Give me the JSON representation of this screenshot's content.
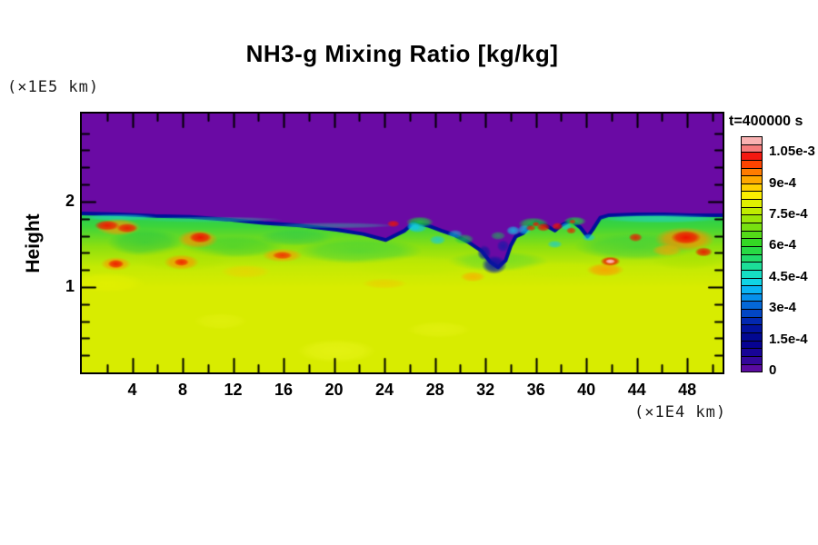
{
  "title": "NH3-g Mixing Ratio [kg/kg]",
  "annotation": {
    "time_label": "t=400000 s"
  },
  "axes": {
    "x": {
      "unit_label": "(×1E4 km)",
      "min": 0,
      "max": 50.8,
      "major_tick_labels": [
        4,
        8,
        12,
        16,
        20,
        24,
        28,
        32,
        36,
        40,
        44,
        48
      ],
      "minor_step": 2,
      "major_step": 4
    },
    "y": {
      "label": "Height",
      "unit_label": "(×1E5 km)",
      "min": 0,
      "max": 3.03,
      "major_tick_labels": [
        1,
        2
      ],
      "minor_step": 0.2,
      "major_step": 1
    }
  },
  "chart_data": {
    "type": "heatmap",
    "title": "NH3-g Mixing Ratio [kg/kg]",
    "xlabel": "(×1E4 km)",
    "ylabel": "Height (×1E5 km)",
    "time_annotation": "t=400000 s",
    "x_range": [
      0,
      50.8
    ],
    "y_range": [
      0,
      3.03
    ],
    "value_unit": "kg/kg",
    "field_summary": "Uniform NH3 gas mixing ratio near 7.5e-4 kg/kg fills the lower domain; above a sharp turbulent interface at height ~1.85x1E5 km the mixing ratio is 0 (purple). A turbulent mixing band between heights ~1.1 and ~1.9 contains vortices with local maxima above 1.05e-3 (red/pink cores) and entrained low-value filaments (blue/cyan), with a deep interface indentation around x = 31-34.",
    "colorbar": {
      "min": 0,
      "max": 0.001125,
      "tick_labels": [
        "0",
        "1.5e-4",
        "3e-4",
        "4.5e-4",
        "6e-4",
        "7.5e-4",
        "9e-4",
        "1.05e-3"
      ],
      "tick_values": [
        0,
        0.00015,
        0.0003,
        0.00045,
        0.0006,
        0.00075,
        0.0009,
        0.00105
      ],
      "segment_colors": [
        "#5a0ba0",
        "#34089a",
        "#180496",
        "#060292",
        "#020892",
        "#02129e",
        "#0228b0",
        "#0246c4",
        "#0468d8",
        "#0690ec",
        "#0ab4f4",
        "#10d4e4",
        "#16dec4",
        "#1cde98",
        "#22dc6c",
        "#28da44",
        "#34d824",
        "#54da18",
        "#78e010",
        "#9ce608",
        "#c0ec00",
        "#e0f000",
        "#fbee00",
        "#ffd000",
        "#ffa800",
        "#ff7c00",
        "#fe4400",
        "#f41810",
        "#f67c7c",
        "#f9b2b2"
      ]
    },
    "render_spec": {
      "base_color": "#d8ec00",
      "upper_color": "#6a0aa4",
      "interface_color": "#000f9b",
      "interface_line_width": 4,
      "band_gradient": {
        "y_top": 1.95,
        "y_bottom": 1.0,
        "stops": [
          [
            0,
            "#18c868"
          ],
          [
            0.25,
            "#3cd43c"
          ],
          [
            0.5,
            "#8ce010"
          ],
          [
            0.75,
            "#c4ea04"
          ],
          [
            1,
            "#d8ec00"
          ]
        ]
      },
      "interface_profile": [
        [
          0,
          1.86
        ],
        [
          2.9,
          1.85
        ],
        [
          5.8,
          1.83
        ],
        [
          8.6,
          1.82
        ],
        [
          11.5,
          1.79
        ],
        [
          14.4,
          1.75
        ],
        [
          17.3,
          1.72
        ],
        [
          20.2,
          1.67
        ],
        [
          22.3,
          1.62
        ],
        [
          24.1,
          1.55
        ],
        [
          25.6,
          1.66
        ],
        [
          26.3,
          1.75
        ],
        [
          27.4,
          1.72
        ],
        [
          28.5,
          1.66
        ],
        [
          29.5,
          1.61
        ],
        [
          30.6,
          1.53
        ],
        [
          31.7,
          1.42
        ],
        [
          32.4,
          1.29
        ],
        [
          33.0,
          1.23
        ],
        [
          33.6,
          1.31
        ],
        [
          34.0,
          1.48
        ],
        [
          34.4,
          1.59
        ],
        [
          35.0,
          1.63
        ],
        [
          35.5,
          1.72
        ],
        [
          36.0,
          1.76
        ],
        [
          36.8,
          1.72
        ],
        [
          37.5,
          1.66
        ],
        [
          38.0,
          1.72
        ],
        [
          38.8,
          1.78
        ],
        [
          39.5,
          1.7
        ],
        [
          40.1,
          1.59
        ],
        [
          40.5,
          1.67
        ],
        [
          41.1,
          1.81
        ],
        [
          41.8,
          1.84
        ],
        [
          44.0,
          1.85
        ],
        [
          46.1,
          1.85
        ],
        [
          48.3,
          1.84
        ],
        [
          50.8,
          1.84
        ]
      ],
      "texture_blobs": [
        {
          "x": 20.2,
          "y": 0.25,
          "rx": 3.2,
          "ry": 0.14,
          "c": "#f0f826",
          "a": 0.5
        },
        {
          "x": 28.3,
          "y": 0.5,
          "rx": 2.6,
          "ry": 0.1,
          "c": "#eef622",
          "a": 0.4
        },
        {
          "x": 11.0,
          "y": 0.6,
          "rx": 2.2,
          "ry": 0.1,
          "c": "#eef622",
          "a": 0.35
        },
        {
          "x": 5.0,
          "y": 1.52,
          "rx": 3.0,
          "ry": 0.16,
          "c": "#10c050",
          "a": 0.5
        },
        {
          "x": 12.0,
          "y": 1.47,
          "rx": 4.0,
          "ry": 0.13,
          "c": "#18c848",
          "a": 0.45
        },
        {
          "x": 22.0,
          "y": 1.42,
          "rx": 5.0,
          "ry": 0.15,
          "c": "#20cc50",
          "a": 0.5
        },
        {
          "x": 33.0,
          "y": 1.3,
          "rx": 4.0,
          "ry": 0.12,
          "c": "#28d048",
          "a": 0.4
        },
        {
          "x": 44.0,
          "y": 1.47,
          "rx": 5.0,
          "ry": 0.16,
          "c": "#18c854",
          "a": 0.5
        },
        {
          "x": 17.0,
          "y": 1.58,
          "rx": 3.0,
          "ry": 0.1,
          "c": "#10c060",
          "a": 0.4
        },
        {
          "x": 8.0,
          "y": 1.33,
          "rx": 4.0,
          "ry": 0.15,
          "c": "#b0e400",
          "a": 0.6
        },
        {
          "x": 26.0,
          "y": 1.25,
          "rx": 5.0,
          "ry": 0.12,
          "c": "#c0ea00",
          "a": 0.6
        },
        {
          "x": 38.0,
          "y": 1.2,
          "rx": 4.0,
          "ry": 0.1,
          "c": "#c8ec00",
          "a": 0.6
        },
        {
          "x": 48.0,
          "y": 1.32,
          "rx": 3.0,
          "ry": 0.12,
          "c": "#a8e200",
          "a": 0.5
        },
        {
          "x": 2.0,
          "y": 1.05,
          "rx": 3.0,
          "ry": 0.12,
          "c": "#e8f200",
          "a": 0.6
        },
        {
          "x": 13.0,
          "y": 1.18,
          "rx": 2.0,
          "ry": 0.08,
          "c": "#ffc400",
          "a": 0.45
        },
        {
          "x": 24.0,
          "y": 1.04,
          "rx": 1.8,
          "ry": 0.06,
          "c": "#ffb400",
          "a": 0.4
        }
      ],
      "feature_blobs": [
        {
          "x": 3.0,
          "y": 1.815,
          "rx": 3.0,
          "ry": 0.04,
          "c": "#22d2c2",
          "a": 0.7
        },
        {
          "x": 45.9,
          "y": 1.8,
          "rx": 4.9,
          "ry": 0.05,
          "c": "#26d4b8",
          "a": 0.75
        },
        {
          "x": 10.0,
          "y": 1.79,
          "rx": 6.0,
          "ry": 0.035,
          "c": "#2ad09c",
          "a": 0.5
        },
        {
          "x": 20.0,
          "y": 1.72,
          "rx": 5.0,
          "ry": 0.035,
          "c": "#2ad09c",
          "a": 0.45
        },
        {
          "x": 2.9,
          "y": 1.7,
          "rx": 1.8,
          "ry": 0.1,
          "c": "#ff9800",
          "a": 0.8
        },
        {
          "x": 9.2,
          "y": 1.56,
          "rx": 1.6,
          "ry": 0.11,
          "c": "#ff8c00",
          "a": 0.8
        },
        {
          "x": 7.9,
          "y": 1.29,
          "rx": 1.4,
          "ry": 0.09,
          "c": "#ff9000",
          "a": 0.8
        },
        {
          "x": 15.9,
          "y": 1.37,
          "rx": 1.6,
          "ry": 0.08,
          "c": "#ff9800",
          "a": 0.75
        },
        {
          "x": 2.7,
          "y": 1.27,
          "rx": 1.2,
          "ry": 0.08,
          "c": "#ff9400",
          "a": 0.8
        },
        {
          "x": 47.8,
          "y": 1.56,
          "rx": 2.4,
          "ry": 0.14,
          "c": "#ff8c00",
          "a": 0.85
        },
        {
          "x": 41.5,
          "y": 1.2,
          "rx": 1.5,
          "ry": 0.08,
          "c": "#ff9800",
          "a": 0.8
        },
        {
          "x": 46.4,
          "y": 1.43,
          "rx": 1.2,
          "ry": 0.07,
          "c": "#ffa000",
          "a": 0.7
        },
        {
          "x": 31.0,
          "y": 1.12,
          "rx": 1.0,
          "ry": 0.06,
          "c": "#ffa800",
          "a": 0.7
        },
        {
          "x": 30.3,
          "y": 1.56,
          "rx": 0.8,
          "ry": 0.06,
          "c": "#18c84c",
          "a": 0.7
        },
        {
          "x": 33.0,
          "y": 1.6,
          "rx": 0.6,
          "ry": 0.05,
          "c": "#18c84c",
          "a": 0.6
        },
        {
          "x": 32.7,
          "y": 1.26,
          "rx": 1.0,
          "ry": 0.11,
          "c": "#0a16a0",
          "a": 0.9
        },
        {
          "x": 31.9,
          "y": 1.4,
          "rx": 0.55,
          "ry": 0.09,
          "c": "#0a16a0",
          "a": 0.8
        },
        {
          "x": 33.4,
          "y": 1.48,
          "rx": 0.5,
          "ry": 0.07,
          "c": "#0c1ca8",
          "a": 0.7
        },
        {
          "x": 26.8,
          "y": 1.76,
          "rx": 1.1,
          "ry": 0.065,
          "c": "#1cc83c",
          "a": 0.9
        },
        {
          "x": 35.8,
          "y": 1.74,
          "rx": 1.2,
          "ry": 0.075,
          "c": "#1cc83c",
          "a": 0.9
        },
        {
          "x": 39.1,
          "y": 1.77,
          "rx": 0.9,
          "ry": 0.055,
          "c": "#20cc40",
          "a": 0.9
        },
        {
          "x": 26.3,
          "y": 1.71,
          "rx": 0.55,
          "ry": 0.055,
          "c": "#12c8e6",
          "a": 0.8
        },
        {
          "x": 35.1,
          "y": 1.67,
          "rx": 0.55,
          "ry": 0.06,
          "c": "#12c8e6",
          "a": 0.75
        },
        {
          "x": 38.4,
          "y": 1.71,
          "rx": 0.45,
          "ry": 0.045,
          "c": "#14cce0",
          "a": 0.7
        },
        {
          "x": 26.6,
          "y": 1.69,
          "rx": 0.75,
          "ry": 0.055,
          "c": "#12c8e6",
          "a": 0.8
        },
        {
          "x": 28.2,
          "y": 1.55,
          "rx": 0.65,
          "ry": 0.055,
          "c": "#14cce0",
          "a": 0.75
        },
        {
          "x": 34.2,
          "y": 1.66,
          "rx": 0.55,
          "ry": 0.055,
          "c": "#10c8e6",
          "a": 0.8
        },
        {
          "x": 37.5,
          "y": 1.5,
          "rx": 0.6,
          "ry": 0.045,
          "c": "#14cce0",
          "a": 0.7
        },
        {
          "x": 40.2,
          "y": 1.58,
          "rx": 0.55,
          "ry": 0.045,
          "c": "#10c8e6",
          "a": 0.7
        },
        {
          "x": 29.6,
          "y": 1.62,
          "rx": 0.6,
          "ry": 0.05,
          "c": "#18d0d8",
          "a": 0.6
        },
        {
          "x": 2.0,
          "y": 1.72,
          "rx": 1.0,
          "ry": 0.06,
          "c": "#ee1400",
          "a": 0.95
        },
        {
          "x": 3.6,
          "y": 1.69,
          "rx": 0.85,
          "ry": 0.055,
          "c": "#ee1400",
          "a": 0.9
        },
        {
          "x": 9.4,
          "y": 1.58,
          "rx": 0.9,
          "ry": 0.065,
          "c": "#ee1000",
          "a": 0.95
        },
        {
          "x": 2.7,
          "y": 1.27,
          "rx": 0.65,
          "ry": 0.05,
          "c": "#ee1400",
          "a": 0.9
        },
        {
          "x": 7.9,
          "y": 1.29,
          "rx": 0.6,
          "ry": 0.045,
          "c": "#f01800",
          "a": 0.85
        },
        {
          "x": 15.9,
          "y": 1.37,
          "rx": 0.8,
          "ry": 0.045,
          "c": "#f02000",
          "a": 0.8
        },
        {
          "x": 24.7,
          "y": 1.74,
          "rx": 0.5,
          "ry": 0.04,
          "c": "#ee1400",
          "a": 0.85
        },
        {
          "x": 36.6,
          "y": 1.7,
          "rx": 0.55,
          "ry": 0.05,
          "c": "#ee1000",
          "a": 0.9
        },
        {
          "x": 37.7,
          "y": 1.71,
          "rx": 0.45,
          "ry": 0.045,
          "c": "#f01400",
          "a": 0.85
        },
        {
          "x": 38.8,
          "y": 1.66,
          "rx": 0.4,
          "ry": 0.04,
          "c": "#f01800",
          "a": 0.8
        },
        {
          "x": 35.6,
          "y": 1.69,
          "rx": 0.4,
          "ry": 0.035,
          "c": "#f01800",
          "a": 0.8
        },
        {
          "x": 36.0,
          "y": 1.735,
          "rx": 0.3,
          "ry": 0.03,
          "c": "#ee1400",
          "a": 0.85
        },
        {
          "x": 38.9,
          "y": 1.765,
          "rx": 0.28,
          "ry": 0.027,
          "c": "#f02000",
          "a": 0.8
        },
        {
          "x": 41.9,
          "y": 1.3,
          "rx": 0.8,
          "ry": 0.055,
          "c": "#ee0c00",
          "a": 0.95
        },
        {
          "x": 43.9,
          "y": 1.58,
          "rx": 0.55,
          "ry": 0.05,
          "c": "#ee1400",
          "a": 0.85
        },
        {
          "x": 47.9,
          "y": 1.58,
          "rx": 1.2,
          "ry": 0.08,
          "c": "#ee0c00",
          "a": 0.95
        },
        {
          "x": 49.3,
          "y": 1.41,
          "rx": 0.7,
          "ry": 0.055,
          "c": "#ee1000",
          "a": 0.9
        },
        {
          "x": 41.9,
          "y": 1.3,
          "rx": 0.4,
          "ry": 0.028,
          "c": "#ffd2d2",
          "a": 0.95
        }
      ]
    }
  }
}
